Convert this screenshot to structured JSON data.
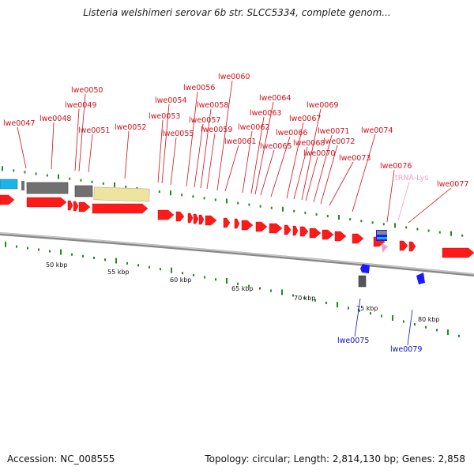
{
  "title": "Listeria welshimeri serovar 6b str. SLCC5334, complete genom...",
  "footer": {
    "accession": "Accession: NC_008555",
    "topology": "Topology: circular; Length: 2,814,130 bp; Genes: 2,858"
  },
  "colors": {
    "forward_gene": "#ff1a1a",
    "reverse_gene": "#1a1aff",
    "label_forward": "#d0101a",
    "label_reverse": "#1010c0",
    "trna": "#f0a0c8",
    "rrna_grey": "#707070",
    "yellow_region": "#efe3a0",
    "cyan_region": "#18b4ec",
    "backbone": "#a0a0a0",
    "tick_green": "#1f8a1f"
  },
  "scale_labels": [
    "50 kbp",
    "55 kbp",
    "60 kbp",
    "65 kbp",
    "70 kbp",
    "75 kbp",
    "80 kbp"
  ],
  "forward_labels": [
    "lwe0047",
    "lwe0048",
    "lwe0049",
    "lwe0050",
    "lwe0051",
    "lwe0052",
    "lwe0053",
    "lwe0054",
    "lwe0055",
    "lwe0056",
    "lwe0057",
    "lwe0058",
    "lwe0059",
    "lwe0060",
    "lwe0061",
    "lwe0062",
    "lwe0063",
    "lwe0064",
    "lwe0065",
    "lwe0066",
    "lwe0067",
    "lwe0068",
    "lwe0069",
    "lwe0070",
    "lwe0071",
    "lwe0072",
    "lwe0073",
    "lwe0074",
    "lwe0076",
    "tRNA-Lys",
    "lwe0077"
  ],
  "reverse_labels": [
    "lwe0075",
    "lwe0079"
  ]
}
